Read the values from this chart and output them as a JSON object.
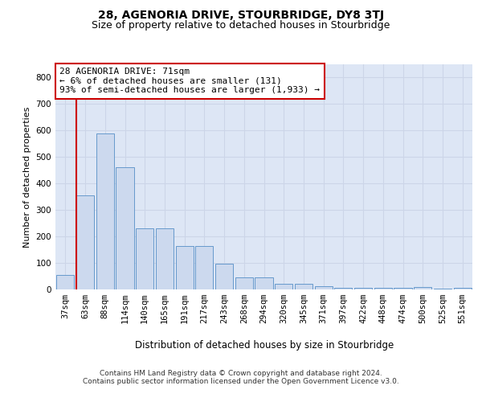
{
  "title": "28, AGENORIA DRIVE, STOURBRIDGE, DY8 3TJ",
  "subtitle": "Size of property relative to detached houses in Stourbridge",
  "xlabel": "Distribution of detached houses by size in Stourbridge",
  "ylabel": "Number of detached properties",
  "categories": [
    "37sqm",
    "63sqm",
    "88sqm",
    "114sqm",
    "140sqm",
    "165sqm",
    "191sqm",
    "217sqm",
    "243sqm",
    "268sqm",
    "294sqm",
    "320sqm",
    "345sqm",
    "371sqm",
    "397sqm",
    "422sqm",
    "448sqm",
    "474sqm",
    "500sqm",
    "525sqm",
    "551sqm"
  ],
  "values": [
    55,
    355,
    588,
    462,
    232,
    232,
    165,
    165,
    96,
    46,
    46,
    22,
    22,
    12,
    5,
    5,
    5,
    5,
    8,
    3,
    5
  ],
  "bar_color": "#ccd9ee",
  "bar_edge_color": "#6699cc",
  "highlight_bar_index": 1,
  "highlight_color": "#cc0000",
  "annotation_text": "28 AGENORIA DRIVE: 71sqm\n← 6% of detached houses are smaller (131)\n93% of semi-detached houses are larger (1,933) →",
  "annotation_box_color": "#ffffff",
  "annotation_box_edge": "#cc0000",
  "ylim": [
    0,
    850
  ],
  "yticks": [
    0,
    100,
    200,
    300,
    400,
    500,
    600,
    700,
    800
  ],
  "grid_color": "#ccd5e8",
  "background_color": "#dde6f5",
  "footer": "Contains HM Land Registry data © Crown copyright and database right 2024.\nContains public sector information licensed under the Open Government Licence v3.0.",
  "title_fontsize": 10,
  "subtitle_fontsize": 9,
  "xlabel_fontsize": 8.5,
  "ylabel_fontsize": 8,
  "tick_fontsize": 7.5,
  "annotation_fontsize": 8,
  "footer_fontsize": 6.5
}
